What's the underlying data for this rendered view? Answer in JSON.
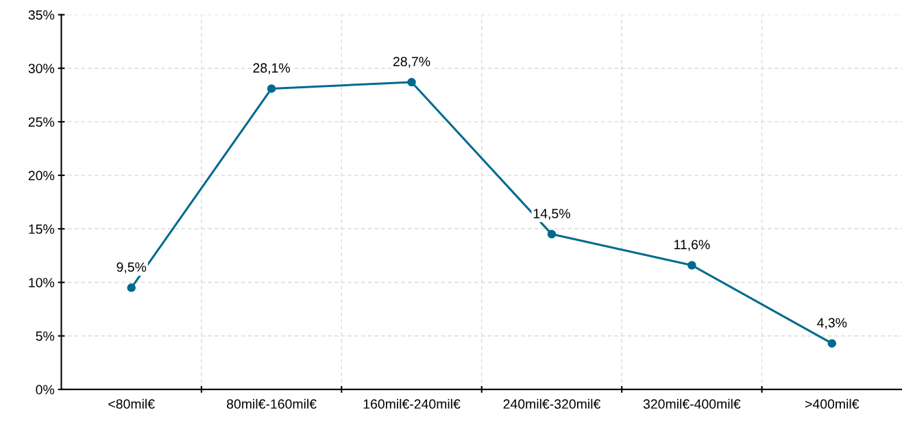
{
  "chart_data": {
    "type": "line",
    "categories": [
      "<80mil€",
      "80mil€-160mil€",
      "160mil€-240mil€",
      "240mil€-320mil€",
      "320mil€-400mil€",
      ">400mil€"
    ],
    "series": [
      {
        "color": "#006a8e",
        "values": [
          9.5,
          28.1,
          28.7,
          14.5,
          11.6,
          4.3
        ],
        "value_labels": [
          "9,5%",
          "28,1%",
          "28,7%",
          "14,5%",
          "11,6%",
          "4,3%"
        ]
      }
    ],
    "ylim": [
      0,
      35
    ],
    "yticks": [
      {
        "value": 0,
        "label": "0%"
      },
      {
        "value": 5,
        "label": "5%"
      },
      {
        "value": 10,
        "label": "10%"
      },
      {
        "value": 15,
        "label": "15%"
      },
      {
        "value": 20,
        "label": "20%"
      },
      {
        "value": 25,
        "label": "25%"
      },
      {
        "value": 30,
        "label": "30%"
      },
      {
        "value": 35,
        "label": "35%"
      }
    ],
    "grid": true,
    "marker": "circle",
    "line_style": "solid"
  }
}
